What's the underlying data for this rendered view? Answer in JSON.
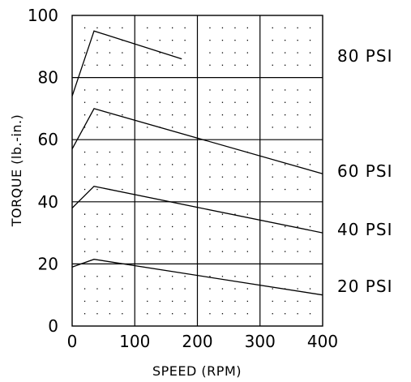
{
  "chart_data": {
    "type": "line",
    "xlabel": "SPEED (RPM)",
    "ylabel": "TORQUE (lb.-in.)",
    "xlim": [
      0,
      400
    ],
    "ylim": [
      0,
      100
    ],
    "xticks": [
      "0",
      "100",
      "200",
      "300",
      "400"
    ],
    "yticks": [
      "0",
      "20",
      "40",
      "60",
      "80",
      "100"
    ],
    "grid": true,
    "minor_dots": true,
    "series": [
      {
        "name": "80 PSI",
        "x": [
          0,
          35,
          175
        ],
        "y": [
          74,
          95,
          86
        ]
      },
      {
        "name": "60 PSI",
        "x": [
          0,
          35,
          400
        ],
        "y": [
          57,
          70,
          49
        ]
      },
      {
        "name": "40 PSI",
        "x": [
          0,
          35,
          400
        ],
        "y": [
          38,
          45,
          30
        ]
      },
      {
        "name": "20 PSI",
        "x": [
          0,
          35,
          400
        ],
        "y": [
          19,
          21.5,
          10
        ]
      }
    ],
    "colors": {
      "line": "#000000",
      "grid": "#000000",
      "background": "#ffffff"
    }
  }
}
